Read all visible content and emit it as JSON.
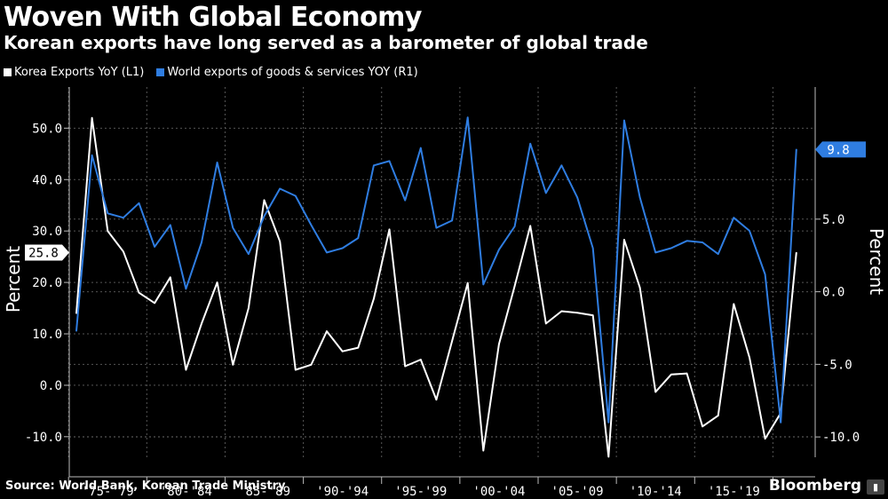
{
  "header": {
    "title": "Woven With Global Economy",
    "subtitle": "Korean exports have long served as a barometer of global trade"
  },
  "legend": [
    {
      "label": "Korea Exports YoY (L1)",
      "color": "#ffffff"
    },
    {
      "label": "World exports of goods & services YOY (R1)",
      "color": "#2f7de1"
    }
  ],
  "footer": {
    "source": "Source: World Bank, Korean Trade Ministry",
    "brand": "Bloomberg"
  },
  "chart_data": {
    "type": "line",
    "x": [
      1975,
      1976,
      1977,
      1978,
      1979,
      1980,
      1981,
      1982,
      1983,
      1984,
      1985,
      1986,
      1987,
      1988,
      1989,
      1990,
      1991,
      1992,
      1993,
      1994,
      1995,
      1996,
      1997,
      1998,
      1999,
      2000,
      2001,
      2002,
      2003,
      2004,
      2005,
      2006,
      2007,
      2008,
      2009,
      2010,
      2011,
      2012,
      2013,
      2014,
      2015,
      2016,
      2017,
      2018,
      2019,
      2020,
      2021
    ],
    "x_tick_labels": [
      "'75-'79",
      "'80-'84",
      "'85-'89",
      "'90-'94",
      "'95-'99",
      "'00-'04",
      "'05-'09",
      "'10-'14",
      "'15-'19"
    ],
    "y_left": {
      "label": "Percent",
      "ticks": [
        "50.0",
        "40.0",
        "30.0",
        "20.0",
        "10.0",
        "0.0",
        "-10.0"
      ],
      "range": [
        -14,
        58
      ]
    },
    "y_right": {
      "label": "Percent",
      "ticks": [
        "5.0",
        "0.0",
        "-5.0",
        "-10.0"
      ],
      "range": [
        -11.4,
        14.1
      ]
    },
    "grid": true,
    "legend_position": "top-left",
    "series": [
      {
        "name": "Korea Exports YoY (L1)",
        "axis": "left",
        "color": "#ffffff",
        "last_value_label": "25.8",
        "values": [
          14,
          52,
          30,
          26,
          18,
          16,
          21,
          3,
          12,
          20,
          4,
          15,
          36,
          28,
          3,
          4,
          10.5,
          6.6,
          7.3,
          16.8,
          30.3,
          3.7,
          5,
          -2.8,
          8.6,
          19.9,
          -12.7,
          8,
          19.3,
          31,
          12,
          14.4,
          14.1,
          13.6,
          -13.9,
          28.3,
          19,
          -1.3,
          2.1,
          2.3,
          -8,
          -5.9,
          15.8,
          5.4,
          -10.4,
          -5.4,
          25.8
        ]
      },
      {
        "name": "World exports of goods & services YOY (R1)",
        "axis": "right",
        "color": "#2f7de1",
        "last_value_label": "9.8",
        "values": [
          -2.7,
          9.4,
          5.4,
          5.1,
          6.1,
          3.1,
          4.6,
          0.2,
          3.4,
          8.9,
          4.4,
          2.6,
          5.2,
          7.1,
          6.6,
          4.6,
          2.7,
          3,
          3.7,
          8.7,
          9,
          6.3,
          9.9,
          4.4,
          4.9,
          12,
          0.5,
          2.9,
          4.5,
          10.2,
          6.8,
          8.7,
          6.5,
          3,
          -9,
          11.8,
          6.5,
          2.7,
          3,
          3.5,
          3.4,
          2.6,
          5.1,
          4.2,
          1.2,
          -9,
          9.8
        ]
      }
    ]
  }
}
